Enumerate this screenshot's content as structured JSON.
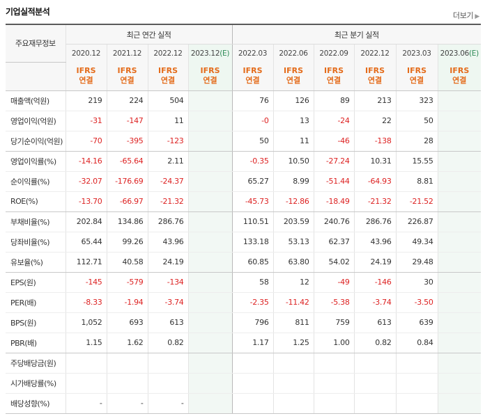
{
  "header": {
    "title": "기업실적분석",
    "more_label": "더보기"
  },
  "table": {
    "corner_label": "주요재무정보",
    "annual_group": "최근 연간 실적",
    "quarter_group": "최근 분기 실적",
    "annual_periods": [
      {
        "date": "2020.12",
        "est": ""
      },
      {
        "date": "2021.12",
        "est": ""
      },
      {
        "date": "2022.12",
        "est": ""
      },
      {
        "date": "2023.12",
        "est": "(E)"
      }
    ],
    "quarter_periods": [
      {
        "date": "2022.03",
        "est": ""
      },
      {
        "date": "2022.06",
        "est": ""
      },
      {
        "date": "2022.09",
        "est": ""
      },
      {
        "date": "2022.12",
        "est": ""
      },
      {
        "date": "2023.03",
        "est": ""
      },
      {
        "date": "2023.06",
        "est": "(E)"
      }
    ],
    "basis_top": "IFRS",
    "basis_bottom": "연결",
    "rows": [
      {
        "label": "매출액(억원)",
        "values": [
          "219",
          "224",
          "504",
          "",
          "76",
          "126",
          "89",
          "213",
          "323",
          ""
        ]
      },
      {
        "label": "영업이익(억원)",
        "values": [
          "-31",
          "-147",
          "11",
          "",
          "-0",
          "13",
          "-24",
          "22",
          "50",
          ""
        ]
      },
      {
        "label": "당기순이익(억원)",
        "values": [
          "-70",
          "-395",
          "-123",
          "",
          "50",
          "11",
          "-46",
          "-138",
          "28",
          ""
        ]
      },
      {
        "label": "영업이익률(%)",
        "values": [
          "-14.16",
          "-65.64",
          "2.11",
          "",
          "-0.35",
          "10.50",
          "-27.24",
          "10.31",
          "15.55",
          ""
        ]
      },
      {
        "label": "순이익률(%)",
        "values": [
          "-32.07",
          "-176.69",
          "-24.37",
          "",
          "65.27",
          "8.99",
          "-51.44",
          "-64.93",
          "8.81",
          ""
        ]
      },
      {
        "label": "ROE(%)",
        "values": [
          "-13.70",
          "-66.97",
          "-21.32",
          "",
          "-45.73",
          "-12.86",
          "-18.49",
          "-21.32",
          "-21.52",
          ""
        ]
      },
      {
        "label": "부채비율(%)",
        "values": [
          "202.84",
          "134.86",
          "286.76",
          "",
          "110.51",
          "203.59",
          "240.76",
          "286.76",
          "226.87",
          ""
        ]
      },
      {
        "label": "당좌비율(%)",
        "values": [
          "65.44",
          "99.26",
          "43.96",
          "",
          "133.18",
          "53.13",
          "62.37",
          "43.96",
          "49.34",
          ""
        ]
      },
      {
        "label": "유보율(%)",
        "values": [
          "112.71",
          "40.58",
          "24.19",
          "",
          "60.85",
          "63.80",
          "54.02",
          "24.19",
          "29.48",
          ""
        ]
      },
      {
        "label": "EPS(원)",
        "values": [
          "-145",
          "-579",
          "-134",
          "",
          "58",
          "12",
          "-49",
          "-146",
          "30",
          ""
        ]
      },
      {
        "label": "PER(배)",
        "values": [
          "-8.33",
          "-1.94",
          "-3.74",
          "",
          "-2.35",
          "-11.42",
          "-5.38",
          "-3.74",
          "-3.50",
          ""
        ]
      },
      {
        "label": "BPS(원)",
        "values": [
          "1,052",
          "693",
          "613",
          "",
          "796",
          "811",
          "759",
          "613",
          "639",
          ""
        ]
      },
      {
        "label": "PBR(배)",
        "values": [
          "1.15",
          "1.62",
          "0.82",
          "",
          "1.17",
          "1.25",
          "1.00",
          "0.82",
          "0.84",
          ""
        ]
      },
      {
        "label": "주당배당금(원)",
        "values": [
          "",
          "",
          "",
          "",
          "",
          "",
          "",
          "",
          "",
          ""
        ]
      },
      {
        "label": "시가배당률(%)",
        "values": [
          "",
          "",
          "",
          "",
          "",
          "",
          "",
          "",
          "",
          ""
        ]
      },
      {
        "label": "배당성향(%)",
        "values": [
          "-",
          "-",
          "-",
          "",
          "",
          "",
          "",
          "",
          "",
          ""
        ]
      }
    ]
  }
}
